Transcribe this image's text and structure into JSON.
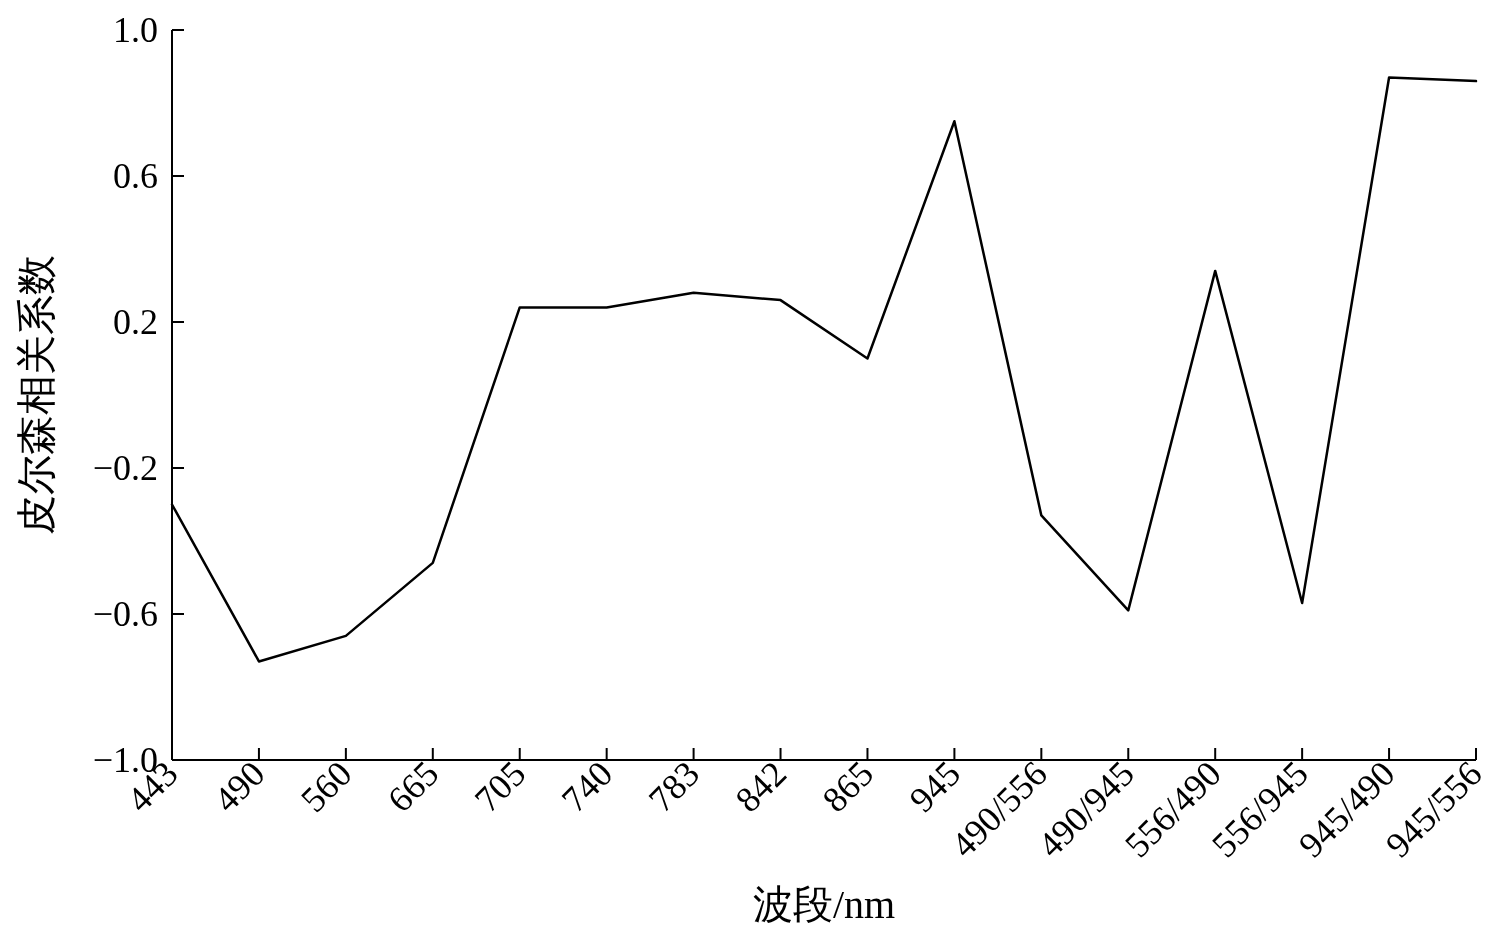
{
  "chart_data": {
    "type": "line",
    "xlabel": "波段/nm",
    "ylabel": "皮尔森相关系数",
    "categories": [
      "443",
      "490",
      "560",
      "665",
      "705",
      "740",
      "783",
      "842",
      "865",
      "945",
      "490/556",
      "490/945",
      "556/490",
      "556/945",
      "945/490",
      "945/556"
    ],
    "values": [
      -0.3,
      -0.73,
      -0.66,
      -0.46,
      0.24,
      0.24,
      0.28,
      0.26,
      0.1,
      0.75,
      -0.33,
      -0.59,
      0.34,
      -0.57,
      0.87,
      0.86
    ],
    "color": "#000000",
    "ylim": [
      -1.0,
      1.0
    ],
    "yticks": [
      {
        "value": -1.0,
        "label": "−1.0"
      },
      {
        "value": -0.6,
        "label": "−0.6"
      },
      {
        "value": -0.2,
        "label": "−0.2"
      },
      {
        "value": 0.2,
        "label": "0.2"
      },
      {
        "value": 0.6,
        "label": "0.6"
      },
      {
        "value": 1.0,
        "label": "1.0"
      }
    ],
    "grid": false,
    "legend": false
  }
}
